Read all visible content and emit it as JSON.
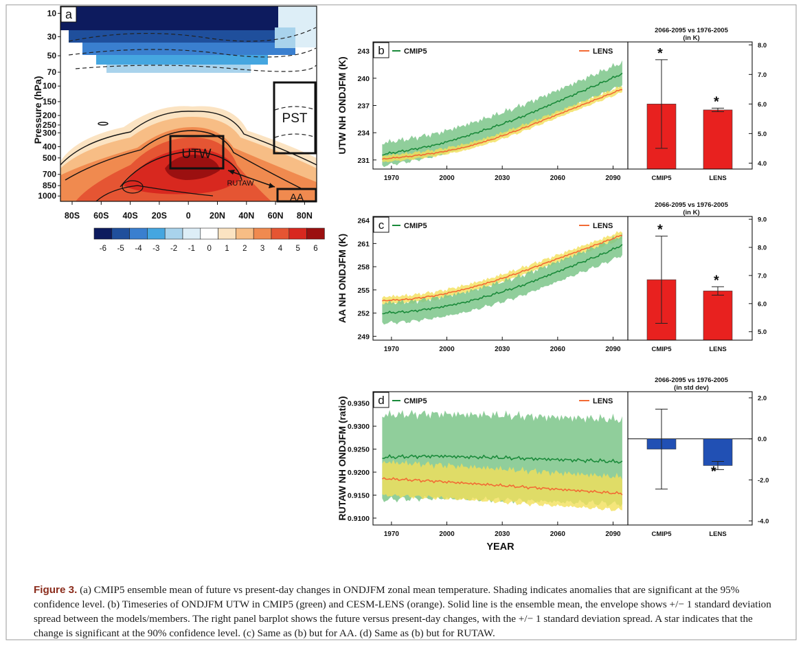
{
  "colors": {
    "cmip5": "#1a8a3a",
    "cmip5_band": "#7cc68a",
    "lens": "#f26a34",
    "lens_band": "#f2e05a",
    "bar_red": "#e8211f",
    "bar_blue": "#2150b4",
    "caption_lead": "#8a2b1b"
  },
  "panel_a": {
    "label": "a",
    "ylabel": "Pressure (hPa)",
    "pressure_ticks": [
      "10",
      "30",
      "50",
      "70",
      "100",
      "150",
      "200",
      "250",
      "300",
      "400",
      "500",
      "700",
      "850",
      "1000"
    ],
    "lat_ticks": [
      "80S",
      "60S",
      "40S",
      "20S",
      "0",
      "20N",
      "40N",
      "60N",
      "80N"
    ],
    "box_labels": {
      "utw": "UTW",
      "pst": "PST",
      "aa": "AA",
      "rutaw": "RUTAW"
    },
    "colorbar_labels": [
      "-6",
      "-5",
      "-4",
      "-3",
      "-2",
      "-1",
      "0",
      "1",
      "2",
      "3",
      "4",
      "5",
      "6"
    ],
    "colorbar_colors": [
      "#0d1b5e",
      "#1f4f9c",
      "#3a7fcf",
      "#45a6e0",
      "#a9d3ec",
      "#ddeef7",
      "#ffffff",
      "#fbe3c2",
      "#f7bd85",
      "#f08a4f",
      "#e55533",
      "#d8281f",
      "#9b1010"
    ]
  },
  "chart_data": [
    {
      "panel": "b",
      "type": "line",
      "ylabel": "UTW NH ONDJFM (K)",
      "legend": [
        "CMIP5",
        "LENS"
      ],
      "x_ticks": [
        "1970",
        "2000",
        "2030",
        "2060",
        "2090"
      ],
      "ylim": [
        230,
        244
      ],
      "y_ticks": [
        "231",
        "234",
        "237",
        "240",
        "243"
      ],
      "series": [
        {
          "name": "CMIP5",
          "x": [
            1965,
            1980,
            1995,
            2010,
            2025,
            2040,
            2055,
            2070,
            2085,
            2095
          ],
          "values": [
            231.6,
            232.1,
            232.7,
            233.6,
            234.6,
            235.7,
            237.0,
            238.3,
            239.6,
            240.5
          ]
        },
        {
          "name": "LENS",
          "x": [
            1965,
            1980,
            1995,
            2010,
            2025,
            2040,
            2055,
            2070,
            2085,
            2095
          ],
          "values": [
            231.1,
            231.4,
            231.8,
            232.4,
            233.3,
            234.4,
            235.6,
            236.8,
            238.0,
            238.8
          ]
        }
      ]
    },
    {
      "panel": "b-bars",
      "type": "bar",
      "title": "2066-2095 vs 1976-2005",
      "subtitle": "(in K)",
      "categories": [
        "CMIP5",
        "LENS"
      ],
      "values": [
        6.0,
        5.8
      ],
      "errors": [
        1.5,
        0.06
      ],
      "significant": [
        true,
        true
      ],
      "ylim": [
        3.8,
        8.1
      ],
      "y_ticks": [
        "4.0",
        "5.0",
        "6.0",
        "7.0",
        "8.0"
      ]
    },
    {
      "panel": "c",
      "type": "line",
      "ylabel": "AA NH ONDJFM (K)",
      "legend": [
        "CMIP5",
        "LENS"
      ],
      "x_ticks": [
        "1970",
        "2000",
        "2030",
        "2060",
        "2090"
      ],
      "ylim": [
        248.5,
        264.5
      ],
      "y_ticks": [
        "249",
        "252",
        "255",
        "258",
        "261",
        "264"
      ],
      "series": [
        {
          "name": "CMIP5",
          "x": [
            1965,
            1980,
            1995,
            2010,
            2025,
            2040,
            2055,
            2070,
            2085,
            2095
          ],
          "values": [
            252.0,
            252.2,
            252.7,
            253.4,
            254.4,
            255.5,
            256.9,
            258.3,
            259.7,
            260.8
          ]
        },
        {
          "name": "LENS",
          "x": [
            1965,
            1980,
            1995,
            2010,
            2025,
            2040,
            2055,
            2070,
            2085,
            2095
          ],
          "values": [
            253.6,
            253.8,
            254.3,
            255.1,
            256.1,
            257.3,
            258.6,
            259.9,
            261.2,
            262.1
          ]
        }
      ]
    },
    {
      "panel": "c-bars",
      "type": "bar",
      "title": "2066-2095 vs 1976-2005",
      "subtitle": "(in K)",
      "categories": [
        "CMIP5",
        "LENS"
      ],
      "values": [
        6.85,
        6.45
      ],
      "errors": [
        1.55,
        0.15
      ],
      "significant": [
        true,
        true
      ],
      "ylim": [
        4.7,
        9.1
      ],
      "y_ticks": [
        "5.0",
        "6.0",
        "7.0",
        "8.0",
        "9.0"
      ]
    },
    {
      "panel": "d",
      "type": "line",
      "ylabel": "RUTAW NH ONDJFM (ratio)",
      "xlabel": "YEAR",
      "legend": [
        "CMIP5",
        "LENS"
      ],
      "x_ticks": [
        "1970",
        "2000",
        "2030",
        "2060",
        "2090"
      ],
      "ylim": [
        0.9085,
        0.9375
      ],
      "y_ticks": [
        "0.9100",
        "0.9150",
        "0.9200",
        "0.9250",
        "0.9300",
        "0.9350"
      ],
      "series": [
        {
          "name": "CMIP5",
          "x": [
            1965,
            1980,
            1995,
            2010,
            2025,
            2040,
            2055,
            2070,
            2085,
            2095
          ],
          "values": [
            0.9232,
            0.9234,
            0.9235,
            0.9233,
            0.9232,
            0.923,
            0.9228,
            0.9226,
            0.9224,
            0.9222
          ]
        },
        {
          "name": "LENS",
          "x": [
            1965,
            1980,
            1995,
            2010,
            2025,
            2040,
            2055,
            2070,
            2085,
            2095
          ],
          "values": [
            0.9186,
            0.9183,
            0.918,
            0.9176,
            0.9172,
            0.9168,
            0.9164,
            0.916,
            0.9156,
            0.9153
          ]
        }
      ]
    },
    {
      "panel": "d-bars",
      "type": "bar",
      "title": "2066-2095 vs 1976-2005",
      "subtitle": "(in std dev)",
      "categories": [
        "CMIP5",
        "LENS"
      ],
      "values": [
        -0.5,
        -1.3
      ],
      "errors": [
        1.95,
        0.2
      ],
      "significant": [
        false,
        true
      ],
      "ylim": [
        -4.2,
        2.3
      ],
      "y_ticks": [
        "2.0",
        "0.0",
        "-2.0",
        "-4.0"
      ]
    }
  ],
  "caption": {
    "lead": "Figure 3.",
    "text": " (a) CMIP5 ensemble mean of future vs present-day changes in ONDJFM zonal mean temperature. Shading indicates anomalies that are significant at the 95% confidence level. (b) Timeseries of ONDJFM UTW in CMIP5 (green) and CESM-LENS (orange). Solid line is the ensemble mean, the envelope shows +/− 1 standard deviation spread between the models/members. The right panel barplot shows the future versus present-day changes, with the +/− 1 standard deviation spread. A star indicates that the change is significant at the 90% confidence level. (c) Same as (b) but for AA. (d) Same as (b) but for RUTAW."
  }
}
